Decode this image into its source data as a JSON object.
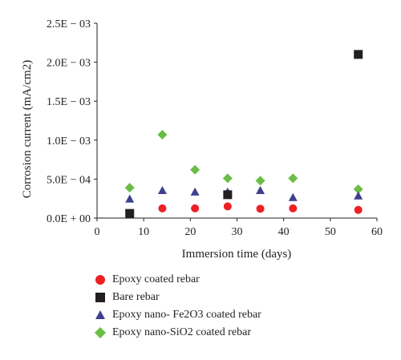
{
  "chart_data": {
    "type": "scatter",
    "xlabel": "Immersion time (days)",
    "ylabel": "Corrosion current (mA/cm2)",
    "xlim": [
      0,
      60
    ],
    "ylim": [
      0,
      0.0025
    ],
    "x_ticks": [
      "0",
      "10",
      "20",
      "30",
      "40",
      "50",
      "60"
    ],
    "y_ticks": [
      "0.0E + 00",
      "5.0E − 04",
      "1.0E − 03",
      "1.5E − 03",
      "2.0E − 03",
      "2.5E − 03"
    ],
    "grid": false,
    "legend_position": "bottom",
    "series": [
      {
        "name": "Epoxy coated rebar",
        "marker": "circle",
        "color": "#ed2024",
        "x": [
          14,
          21,
          28,
          35,
          42,
          56
        ],
        "y": [
          0.000125,
          0.000125,
          0.00015,
          0.00012,
          0.000125,
          0.000105
        ]
      },
      {
        "name": "Bare rebar",
        "marker": "square",
        "color": "#231f20",
        "x": [
          7,
          28,
          56
        ],
        "y": [
          6e-05,
          0.0003,
          0.0021
        ]
      },
      {
        "name": "Epoxy nano- Fe2O3 coated rebar",
        "marker": "triangle",
        "color": "#3f3f8f",
        "x": [
          7,
          14,
          21,
          28,
          35,
          42,
          56
        ],
        "y": [
          0.00024,
          0.00035,
          0.00033,
          0.00033,
          0.00035,
          0.00026,
          0.00028
        ]
      },
      {
        "name": "Epoxy nano-SiO2 coated rebar",
        "marker": "diamond",
        "color": "#6bbd45",
        "x": [
          7,
          14,
          21,
          28,
          35,
          42,
          56
        ],
        "y": [
          0.00039,
          0.00107,
          0.00062,
          0.00051,
          0.00048,
          0.00051,
          0.00037
        ]
      }
    ]
  }
}
